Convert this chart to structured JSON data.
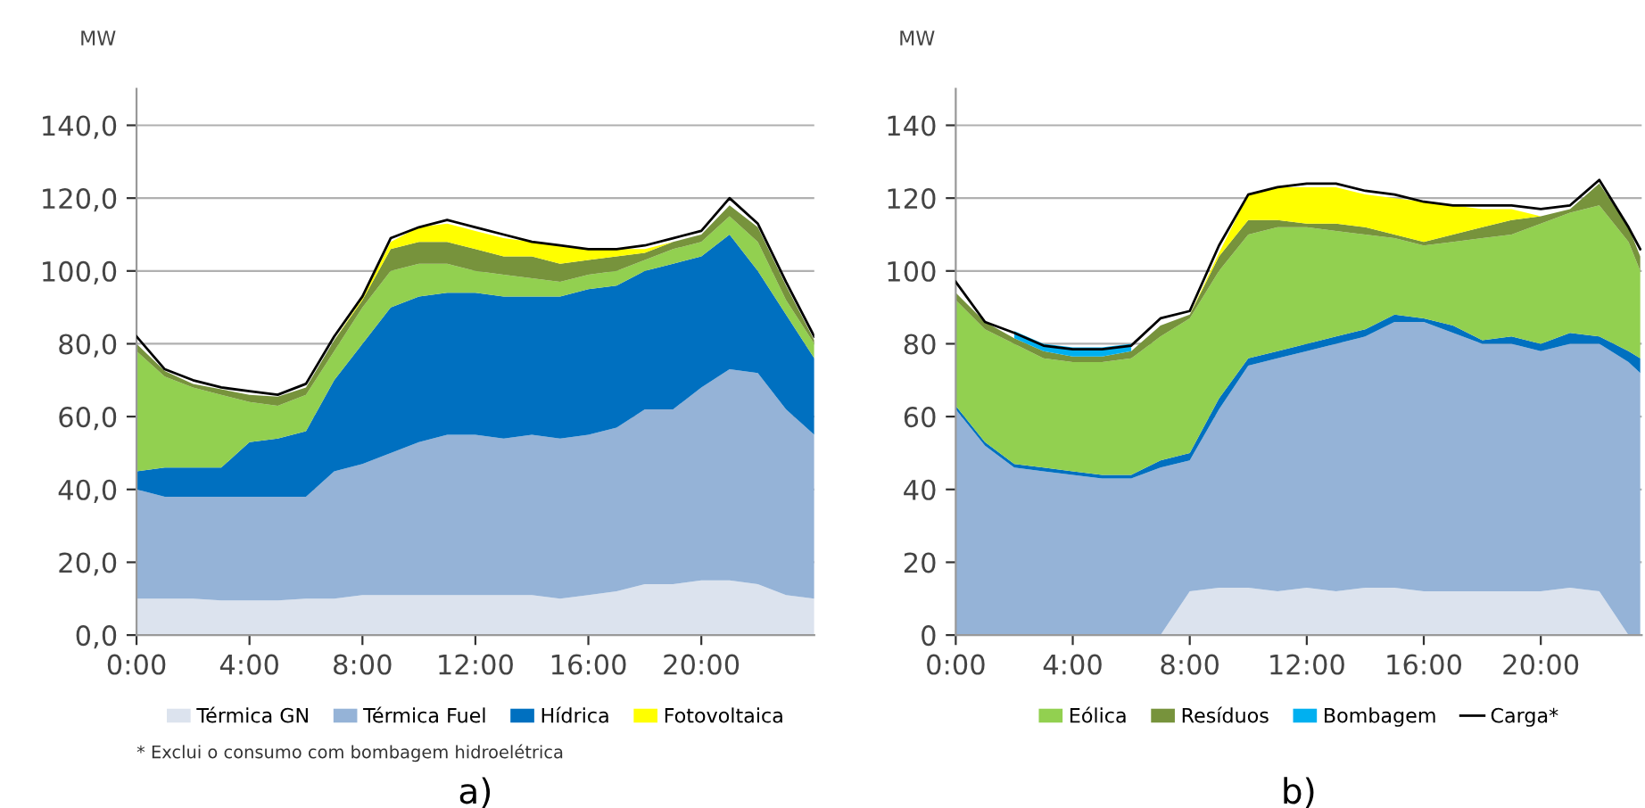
{
  "chart_data": [
    {
      "type": "area",
      "title": "a)",
      "ylabel": "MW",
      "stacked": true,
      "grid": "y",
      "legend": "bottom",
      "annotations": [
        "* Exclui o consumo com bombagem hidroelétrica"
      ],
      "x": [
        0,
        1,
        2,
        3,
        4,
        5,
        6,
        7,
        8,
        9,
        10,
        11,
        12,
        13,
        14,
        15,
        16,
        17,
        18,
        19,
        20,
        21,
        22,
        23,
        24
      ],
      "xlim": [
        0,
        24
      ],
      "xticks": [
        {
          "value": 0,
          "label": "0:00"
        },
        {
          "value": 4,
          "label": "4:00"
        },
        {
          "value": 8,
          "label": "8:00"
        },
        {
          "value": 12,
          "label": "12:00"
        },
        {
          "value": 16,
          "label": "16:00"
        },
        {
          "value": 20,
          "label": "20:00"
        }
      ],
      "ylim": [
        0,
        150
      ],
      "yticks": [
        {
          "value": 0,
          "label": "0,0"
        },
        {
          "value": 20,
          "label": "20,0"
        },
        {
          "value": 40,
          "label": "40,0"
        },
        {
          "value": 60,
          "label": "60,0"
        },
        {
          "value": 80,
          "label": "80,0"
        },
        {
          "value": 100,
          "label": "100,0"
        },
        {
          "value": 120,
          "label": "120,0"
        },
        {
          "value": 140,
          "label": "140,0"
        }
      ],
      "series": [
        {
          "name": "Térmica GN",
          "color": "#dce3ee",
          "values": [
            10,
            10,
            10,
            9.5,
            9.5,
            9.5,
            10,
            10,
            11,
            11,
            11,
            11,
            11,
            11,
            11,
            10,
            11,
            12,
            14,
            14,
            15,
            15,
            14,
            11,
            10
          ]
        },
        {
          "name": "Térmica Fuel",
          "color": "#95b3d7",
          "values": [
            30,
            28,
            28,
            28.5,
            28.5,
            28.5,
            28,
            35,
            36,
            39,
            42,
            44,
            44,
            43,
            44,
            44,
            44,
            45,
            48,
            48,
            53,
            58,
            58,
            51,
            45
          ]
        },
        {
          "name": "Hídrica",
          "color": "#0070c0",
          "values": [
            5,
            8,
            8,
            8,
            15,
            16,
            18,
            25,
            33,
            40,
            40,
            39,
            39,
            39,
            38,
            39,
            40,
            39,
            38,
            40,
            36,
            37,
            28,
            26,
            21
          ]
        },
        {
          "color": "#92d050",
          "values": [
            33,
            25,
            22,
            20,
            11,
            9,
            10,
            8,
            10,
            10,
            9,
            8,
            6,
            6,
            5,
            4,
            4,
            4,
            3,
            4,
            4,
            5,
            8,
            4,
            4
          ]
        },
        {
          "color": "#77933c",
          "values": [
            2,
            1.5,
            1,
            1.5,
            2,
            2.5,
            2,
            3,
            2,
            6,
            6,
            6,
            6,
            5,
            6,
            5,
            4,
            4,
            2,
            2,
            2,
            3,
            4,
            4,
            1
          ]
        },
        {
          "name": "Fotovoltaica",
          "color": "#ffff00",
          "values": [
            0,
            0,
            0,
            0,
            0,
            0,
            0,
            0,
            0.5,
            2,
            4,
            5,
            5,
            5,
            4,
            5,
            3,
            2,
            1,
            0,
            0,
            0,
            0,
            0,
            0
          ]
        },
        {
          "type": "line",
          "color": "#000000",
          "values": [
            82,
            73,
            70,
            68,
            67,
            66,
            69,
            82,
            93,
            109,
            112,
            114,
            112,
            110,
            108,
            107,
            106,
            106,
            107,
            109,
            111,
            120,
            113,
            97,
            82
          ]
        }
      ]
    },
    {
      "type": "area",
      "title": "b)",
      "ylabel": "MW",
      "stacked": true,
      "grid": "y",
      "legend": "bottom",
      "x": [
        0,
        1,
        2,
        3,
        4,
        5,
        6,
        7,
        8,
        9,
        10,
        11,
        12,
        13,
        14,
        15,
        16,
        17,
        18,
        19,
        20,
        21,
        22,
        23,
        23.4
      ],
      "xlim": [
        0,
        23.45
      ],
      "xticks": [
        {
          "value": 0,
          "label": "0:00"
        },
        {
          "value": 4,
          "label": "4:00"
        },
        {
          "value": 8,
          "label": "8:00"
        },
        {
          "value": 12,
          "label": "12:00"
        },
        {
          "value": 16,
          "label": "16:00"
        },
        {
          "value": 20,
          "label": "20:00"
        }
      ],
      "ylim": [
        0,
        150
      ],
      "yticks": [
        0,
        20,
        40,
        60,
        80,
        100,
        120,
        140
      ],
      "series": [
        {
          "color": "#dce3ee",
          "values": [
            0,
            0,
            0,
            0,
            0,
            0,
            0,
            0,
            12,
            13,
            13,
            12,
            13,
            12,
            13,
            13,
            12,
            12,
            12,
            12,
            12,
            13,
            12,
            0,
            0
          ]
        },
        {
          "color": "#95b3d7",
          "values": [
            62,
            52,
            46,
            45,
            44,
            43,
            43,
            46,
            36,
            49,
            61,
            64,
            65,
            68,
            69,
            73,
            74,
            71,
            68,
            68,
            66,
            67,
            68,
            75,
            72
          ]
        },
        {
          "color": "#0070c0",
          "values": [
            1,
            1,
            1,
            1,
            1,
            1,
            1,
            2,
            2,
            3,
            2,
            2,
            2,
            2,
            2,
            2,
            1,
            2,
            1,
            2,
            2,
            3,
            2,
            3,
            4
          ]
        },
        {
          "name": "Eólica",
          "color": "#92d050",
          "values": [
            29,
            31,
            33,
            30,
            30,
            31,
            32,
            34,
            37,
            35,
            34,
            34,
            32,
            29,
            26,
            21,
            20,
            23,
            28,
            28,
            33,
            33,
            36,
            30,
            24
          ]
        },
        {
          "name": "Resíduos",
          "color": "#77933c",
          "values": [
            2,
            2,
            1.5,
            2,
            1.5,
            1.5,
            2,
            3,
            1,
            4,
            4,
            2,
            1,
            2,
            2,
            1,
            1,
            2,
            3,
            4,
            2,
            1,
            6,
            4,
            4
          ]
        },
        {
          "color": "#ffff00",
          "values": [
            0,
            0,
            0,
            0,
            0,
            0,
            0,
            0,
            0,
            1,
            7,
            9,
            10,
            10,
            9,
            10,
            11,
            8,
            5,
            3,
            0,
            0,
            0,
            0,
            0
          ]
        },
        {
          "name": "Bombagem",
          "color": "#00b0f0",
          "values": [
            null,
            null,
            2,
            2,
            2.5,
            2.5,
            2,
            null,
            null,
            null,
            null,
            null,
            null,
            null,
            null,
            null,
            null,
            null,
            null,
            null,
            null,
            null,
            null,
            null,
            null
          ]
        },
        {
          "name": "Carga*",
          "type": "line",
          "color": "#000000",
          "values": [
            97,
            86,
            83,
            79.5,
            78.5,
            78.5,
            79.5,
            87,
            89,
            107,
            121,
            123,
            124,
            124,
            122,
            121,
            119,
            118,
            118,
            118,
            117,
            118,
            125,
            112,
            106
          ]
        }
      ]
    }
  ]
}
